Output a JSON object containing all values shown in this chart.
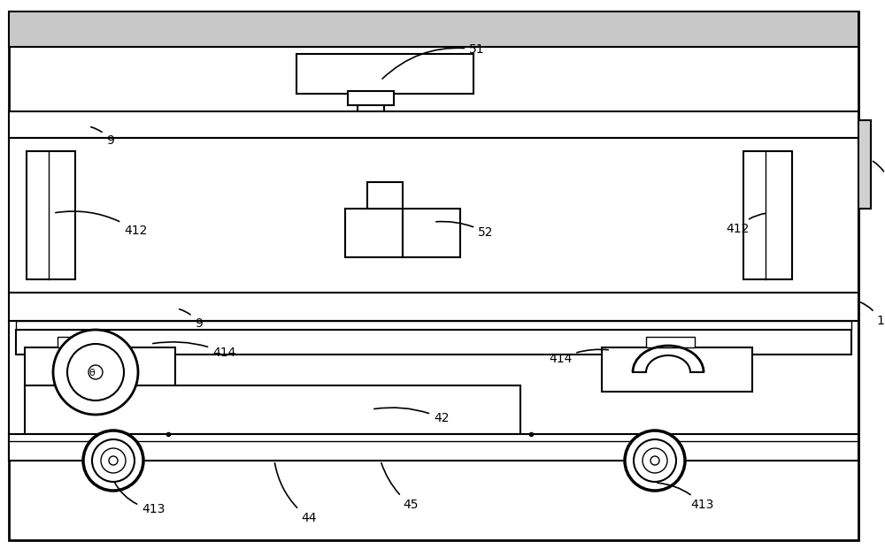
{
  "bg_color": "#ffffff",
  "line_color": "#000000",
  "fig_width": 10.0,
  "fig_height": 6.21,
  "gray_bar": "#c8c8c8",
  "gray_panel": "#d0d0d0"
}
